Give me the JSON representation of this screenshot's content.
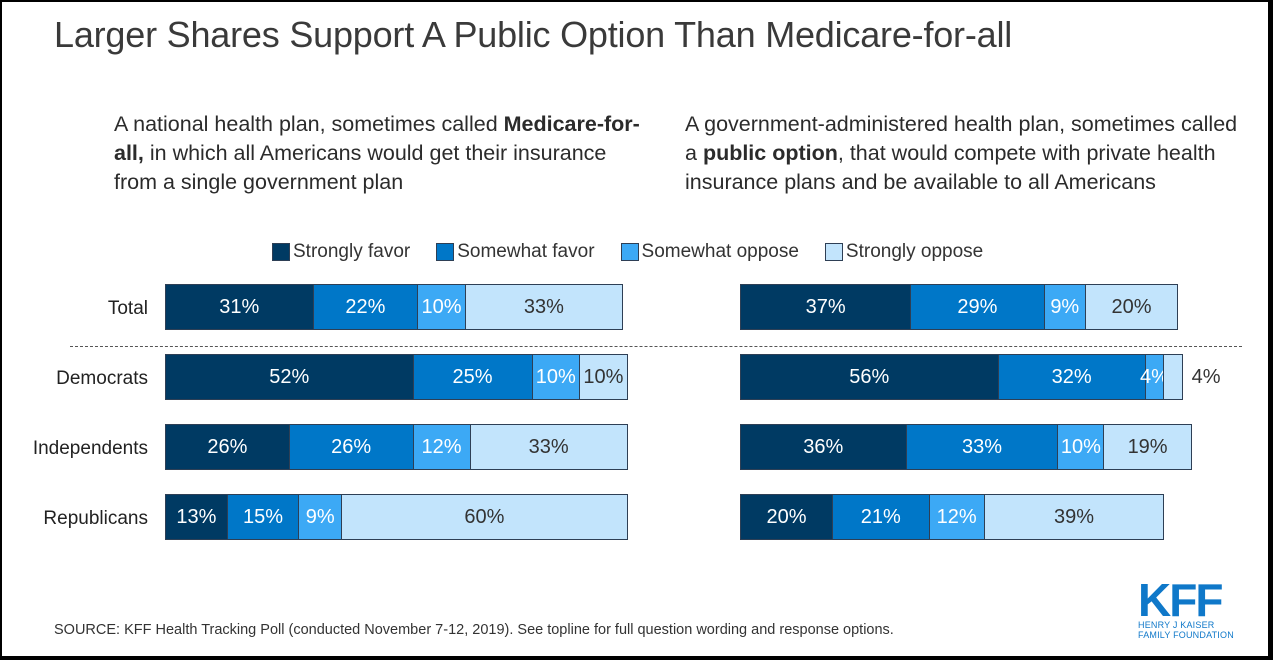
{
  "chart_data": {
    "type": "bar",
    "orientation": "horizontal-stacked",
    "title": "Larger Shares Support A Public Option Than Medicare-for-all",
    "legend": [
      "Strongly favor",
      "Somewhat favor",
      "Somewhat oppose",
      "Strongly oppose"
    ],
    "legend_placement": "top-center",
    "colors": [
      "#003a63",
      "#0077c8",
      "#3ca9f5",
      "#c2e4fc"
    ],
    "text_colors": [
      "#ffffff",
      "#ffffff",
      "#ffffff",
      "#333333"
    ],
    "categories": [
      "Total",
      "Democrats",
      "Independents",
      "Republicans"
    ],
    "panels": [
      {
        "name": "Medicare-for-all",
        "question_pre": "A national health plan, sometimes called ",
        "question_bold": "Medicare-for-all,",
        "question_post": " in which all Americans would get their insurance from a single government plan",
        "series": [
          {
            "name": "Strongly favor",
            "values": [
              31,
              52,
              26,
              13
            ]
          },
          {
            "name": "Somewhat favor",
            "values": [
              22,
              25,
              26,
              15
            ]
          },
          {
            "name": "Somewhat oppose",
            "values": [
              10,
              10,
              12,
              9
            ]
          },
          {
            "name": "Strongly oppose",
            "values": [
              33,
              10,
              33,
              60
            ]
          }
        ]
      },
      {
        "name": "Public option",
        "question_pre": "A government-administered health plan, sometimes called a ",
        "question_bold": "public option",
        "question_post": ", that would compete with private health insurance plans and be available to all Americans",
        "series": [
          {
            "name": "Strongly favor",
            "values": [
              37,
              56,
              36,
              20
            ]
          },
          {
            "name": "Somewhat favor",
            "values": [
              29,
              32,
              33,
              21
            ]
          },
          {
            "name": "Somewhat oppose",
            "values": [
              9,
              4,
              10,
              12
            ]
          },
          {
            "name": "Strongly oppose",
            "values": [
              20,
              4,
              19,
              39
            ]
          }
        ],
        "outside_labels": [
          {
            "row": 1,
            "series": 3,
            "text": "4%"
          }
        ]
      }
    ],
    "xlim": [
      0,
      100
    ],
    "unit": "%"
  },
  "source": "SOURCE: KFF Health Tracking Poll (conducted November 7-12, 2019). See topline for full question wording and response options.",
  "logo": {
    "mark": "KFF",
    "line1": "HENRY J KAISER",
    "line2": "FAMILY FOUNDATION",
    "color": "#0f78c9"
  }
}
